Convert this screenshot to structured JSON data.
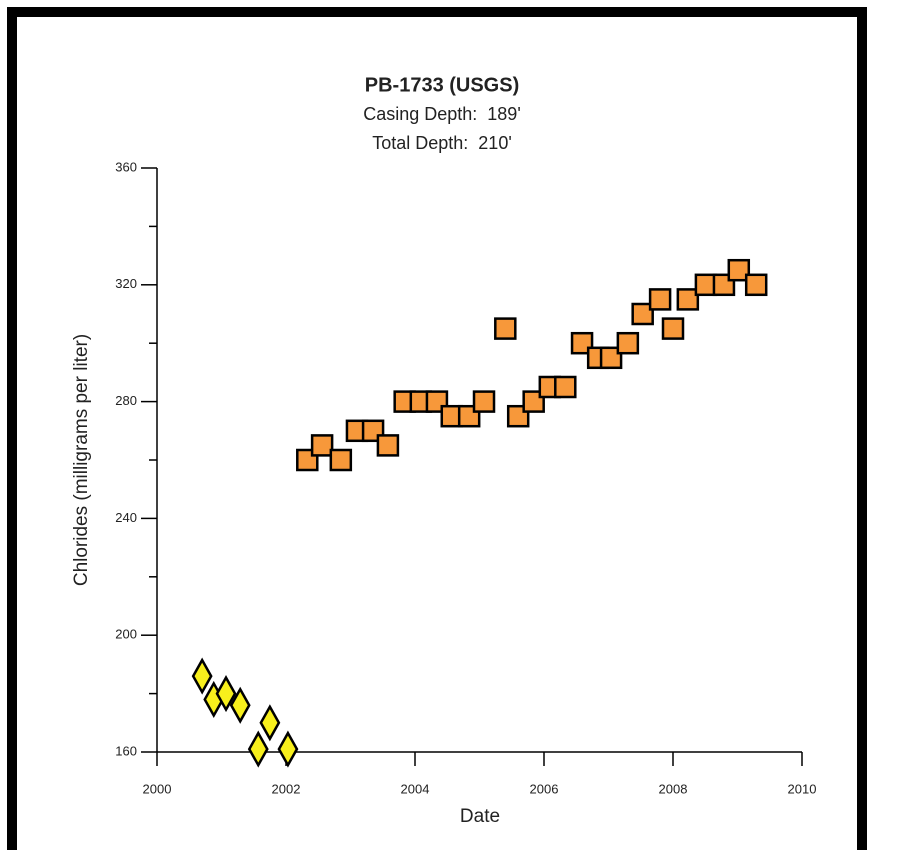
{
  "chart_data": {
    "type": "scatter",
    "title": "PB-1733 (USGS)",
    "subtitle": [
      "Casing Depth:  189'",
      "Total Depth:  210'"
    ],
    "xlabel": "Date",
    "ylabel": "Chlorides (milligrams per liter)",
    "xlim": [
      2000,
      2010
    ],
    "xticks": [
      2000,
      2002,
      2004,
      2006,
      2008,
      2010
    ],
    "ylim": [
      160,
      360
    ],
    "yticks": [
      160,
      200,
      240,
      280,
      320,
      360
    ],
    "yminorticks": [
      180,
      220,
      260,
      300,
      340
    ],
    "series": [
      {
        "color": "#f7ef1c",
        "marker": "diamond",
        "x": [
          2000.7,
          2000.88,
          2001.07,
          2001.29,
          2001.57,
          2001.75,
          2002.03
        ],
        "values": [
          186,
          178,
          180,
          176,
          161,
          170,
          161
        ]
      },
      {
        "color": "#f7983a",
        "marker": "square",
        "x": [
          2002.33,
          2002.56,
          2002.85,
          2003.1,
          2003.35,
          2003.58,
          2003.84,
          2004.09,
          2004.34,
          2004.57,
          2004.84,
          2005.07,
          2005.4,
          2005.6,
          2005.84,
          2006.09,
          2006.33,
          2006.59,
          2006.84,
          2007.04,
          2007.3,
          2007.53,
          2007.8,
          2008.0,
          2008.23,
          2008.51,
          2008.79,
          2009.02,
          2009.29
        ],
        "values": [
          260,
          265,
          260,
          270,
          270,
          265,
          280,
          280,
          280,
          275,
          275,
          280,
          305,
          275,
          280,
          285,
          285,
          300,
          295,
          295,
          300,
          310,
          315,
          305,
          315,
          320,
          320,
          325,
          320
        ]
      }
    ]
  }
}
